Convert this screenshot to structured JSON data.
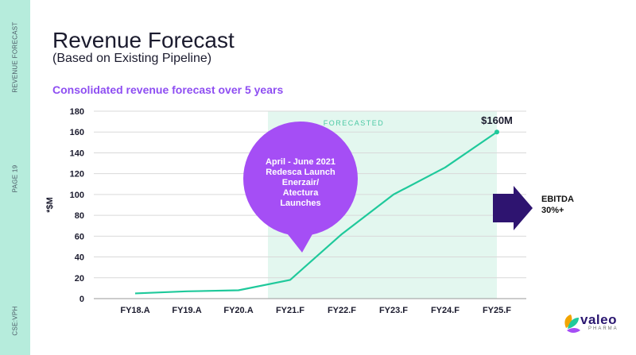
{
  "sidebar": {
    "section_label": "REVENUE FORECAST",
    "page_label": "PAGE 19",
    "ticker_label": "CSE:VPH"
  },
  "header": {
    "title": "Revenue Forecast",
    "subtitle": "(Based on Existing Pipeline)"
  },
  "section_heading": "Consolidated revenue forecast over 5 years",
  "chart_data": {
    "type": "line",
    "categories": [
      "FY18.A",
      "FY19.A",
      "FY20.A",
      "FY21.F",
      "FY22.F",
      "FY23.F",
      "FY24.F",
      "FY25.F"
    ],
    "values": [
      5,
      7,
      8,
      18,
      62,
      100,
      126,
      160
    ],
    "ylabel": "*$M",
    "yticks": [
      0,
      20,
      40,
      60,
      80,
      100,
      120,
      140,
      160,
      180
    ],
    "ylim": [
      0,
      180
    ],
    "grid": true,
    "forecast_region": {
      "label": "FORECASTED",
      "from_category": "FY21.F",
      "to_category": "FY25.F"
    },
    "end_label": "$160M",
    "colors": {
      "line": "#1fc99b",
      "forecast_band": "#e3f7ef",
      "forecast_text": "#4cc9a5",
      "grid": "#d9d9d9"
    }
  },
  "callout": {
    "lines": [
      "April - June 2021",
      "Redesca Launch",
      "Enerzair/",
      "Atectura",
      "Launches"
    ],
    "color": "#a54ef5"
  },
  "ebitda": {
    "lines": [
      "EBITDA",
      "30%+"
    ],
    "arrow_color": "#2e1470"
  },
  "logo": {
    "wordmark": "valeo",
    "sub": "PHARMA"
  }
}
